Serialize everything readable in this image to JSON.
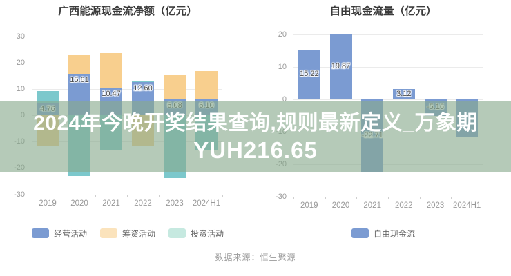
{
  "page": {
    "background": "#ffffff"
  },
  "footer": {
    "source_text": "数据来源：恒生聚源"
  },
  "watermark_overlay": {
    "line1": "2024年今晚开奖结果查询,规则最新定义_万象期",
    "line2": "YUH216.65",
    "band_color": "rgba(136,169,140,0.62)",
    "text_color": "#ffffff"
  },
  "colors": {
    "operating_blue": "#7b9bd2",
    "financing_orange": "#f8cf8e",
    "investing_teal": "#7cc8cc",
    "legend_financing_orange": "#fbe3bc",
    "legend_investing_teal": "#c6e9e0",
    "free_cash_blue": "#7b9bd2",
    "gridline": "#ebebeb",
    "axis_text": "#999999"
  },
  "chart_data": [
    {
      "type": "bar",
      "stacked": true,
      "title": "广西能源现金流净额（亿元）",
      "categories": [
        "2019",
        "2020",
        "2021",
        "2022",
        "2023",
        "2024H1"
      ],
      "yticks": [
        30,
        20,
        10,
        0,
        -10,
        -20,
        -30
      ],
      "ylim": [
        -30,
        30
      ],
      "grid": true,
      "legend_position": "bottom",
      "label_position": "inside-top",
      "series": [
        {
          "name": "经营活动",
          "color": "#7b9bd2",
          "legend_color": "#7b9bd2",
          "values": [
            4.76,
            15.61,
            10.47,
            12.6,
            6.08,
            6.1
          ],
          "labels": [
            "4.76",
            "15.61",
            "10.47",
            "12.60",
            "6.08",
            "6.10"
          ]
        },
        {
          "name": "筹资活动",
          "color": "#f8cf8e",
          "legend_color": "#fbe3bc",
          "values": [
            -11.8,
            7.1,
            13.2,
            -11.5,
            9.4,
            10.6
          ],
          "labels": [
            null,
            null,
            null,
            null,
            null,
            null
          ]
        },
        {
          "name": "投资活动",
          "color": "#7cc8cc",
          "legend_color": "#c6e9e0",
          "values": [
            4.3,
            -23.1,
            -13.4,
            0.6,
            -23.9,
            -13.2
          ],
          "labels": [
            null,
            null,
            null,
            null,
            null,
            null
          ]
        }
      ]
    },
    {
      "type": "bar",
      "stacked": false,
      "title": "自由现金流量（亿元）",
      "categories": [
        "2019",
        "2020",
        "2021",
        "2022",
        "2023",
        "2024H1"
      ],
      "yticks": [
        20,
        10,
        0,
        -10,
        -20,
        -30
      ],
      "ylim": [
        -30,
        20
      ],
      "grid": true,
      "legend_position": "bottom",
      "label_position": "center",
      "series": [
        {
          "name": "自由现金流",
          "color": "#7b9bd2",
          "legend_color": "#7b9bd2",
          "values": [
            15.22,
            19.87,
            -22.71,
            3.12,
            -5.16,
            -11.7
          ],
          "labels": [
            "15.22",
            "19.87",
            "-22.71",
            "3.12",
            "-5.16",
            null
          ]
        }
      ]
    }
  ]
}
